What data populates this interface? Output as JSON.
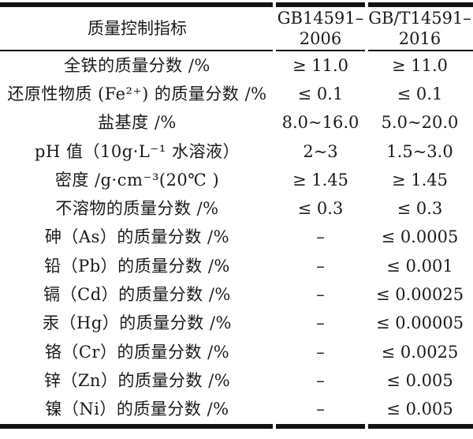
{
  "page": {
    "background": "#ffffff",
    "text_color": "#1a1a1a",
    "rule_color": "#121212"
  },
  "table": {
    "header": {
      "indicator_label": "质量控制指标",
      "col_2006_line1": "GB14591–",
      "col_2006_line2": "2006",
      "col_2016_line1": "GB/T14591–",
      "col_2016_line2": "2016"
    },
    "rows": [
      {
        "label": "全铁的质量分数 /%",
        "gb2006": "≥ 11.0",
        "gb2016": "≥ 11.0"
      },
      {
        "label": "还原性物质 (Fe²⁺) 的质量分数 /%",
        "gb2006": "≤ 0.1",
        "gb2016": "≤ 0.1"
      },
      {
        "label": "盐基度 /%",
        "gb2006": "8.0~16.0",
        "gb2016": "5.0~20.0"
      },
      {
        "label": "pH 值（10g·L⁻¹ 水溶液）",
        "gb2006": "2~3",
        "gb2016": "1.5~3.0"
      },
      {
        "label": "密度 /g·cm⁻³(20℃ )",
        "gb2006": "≥ 1.45",
        "gb2016": "≥ 1.45"
      },
      {
        "label": "不溶物的质量分数 /%",
        "gb2006": "≤ 0.3",
        "gb2016": "≤ 0.3"
      },
      {
        "label": "砷（As）的质量分数 /%",
        "gb2006": "–",
        "gb2016": "≤ 0.0005"
      },
      {
        "label": "铅（Pb）的质量分数 /%",
        "gb2006": "–",
        "gb2016": "≤ 0.001"
      },
      {
        "label": "镉（Cd）的质量分数 /%",
        "gb2006": "–",
        "gb2016": "≤ 0.00025"
      },
      {
        "label": "汞（Hg）的质量分数 /%",
        "gb2006": "–",
        "gb2016": "≤ 0.00005"
      },
      {
        "label": "铬（Cr）的质量分数 /%",
        "gb2006": "–",
        "gb2016": "≤ 0.0025"
      },
      {
        "label": "锌（Zn）的质量分数 /%",
        "gb2006": "–",
        "gb2016": "≤ 0.005"
      },
      {
        "label": "镍（Ni）的质量分数 /%",
        "gb2006": "–",
        "gb2016": "≤ 0.005"
      }
    ]
  }
}
